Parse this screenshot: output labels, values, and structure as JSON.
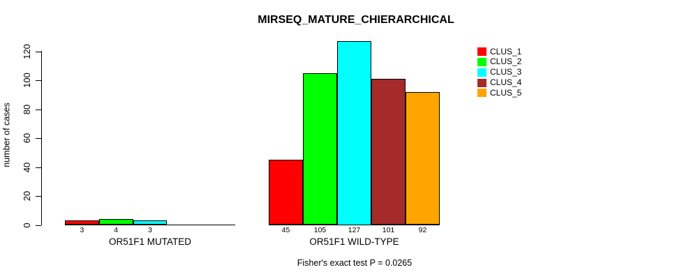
{
  "title": "MIRSEQ_MATURE_CHIERARCHICAL",
  "footer_note": "Fisher's exact test P = 0.0265",
  "chart_data": {
    "type": "bar",
    "title": "MIRSEQ_MATURE_CHIERARCHICAL",
    "xlabel": "",
    "ylabel": "number of cases",
    "ylim": [
      0,
      128
    ],
    "yticks": [
      0,
      20,
      40,
      60,
      80,
      100,
      120
    ],
    "grid": false,
    "legend_position": "top-right",
    "series": [
      {
        "name": "CLUS_1",
        "color": "#FF0000"
      },
      {
        "name": "CLUS_2",
        "color": "#00FF00"
      },
      {
        "name": "CLUS_3",
        "color": "#00FFFF"
      },
      {
        "name": "CLUS_4",
        "color": "#A52A2A"
      },
      {
        "name": "CLUS_5",
        "color": "#FFA500"
      }
    ],
    "groups": [
      {
        "label": "OR51F1 MUTATED",
        "values": [
          3,
          4,
          3,
          0,
          0
        ],
        "bar_labels": [
          "3",
          "4",
          "3",
          "",
          ""
        ]
      },
      {
        "label": "OR51F1 WILD-TYPE",
        "values": [
          45,
          105,
          127,
          101,
          92
        ],
        "bar_labels": [
          "45",
          "105",
          "127",
          "101",
          "92"
        ]
      }
    ],
    "annotation": "Fisher's exact test P = 0.0265"
  }
}
